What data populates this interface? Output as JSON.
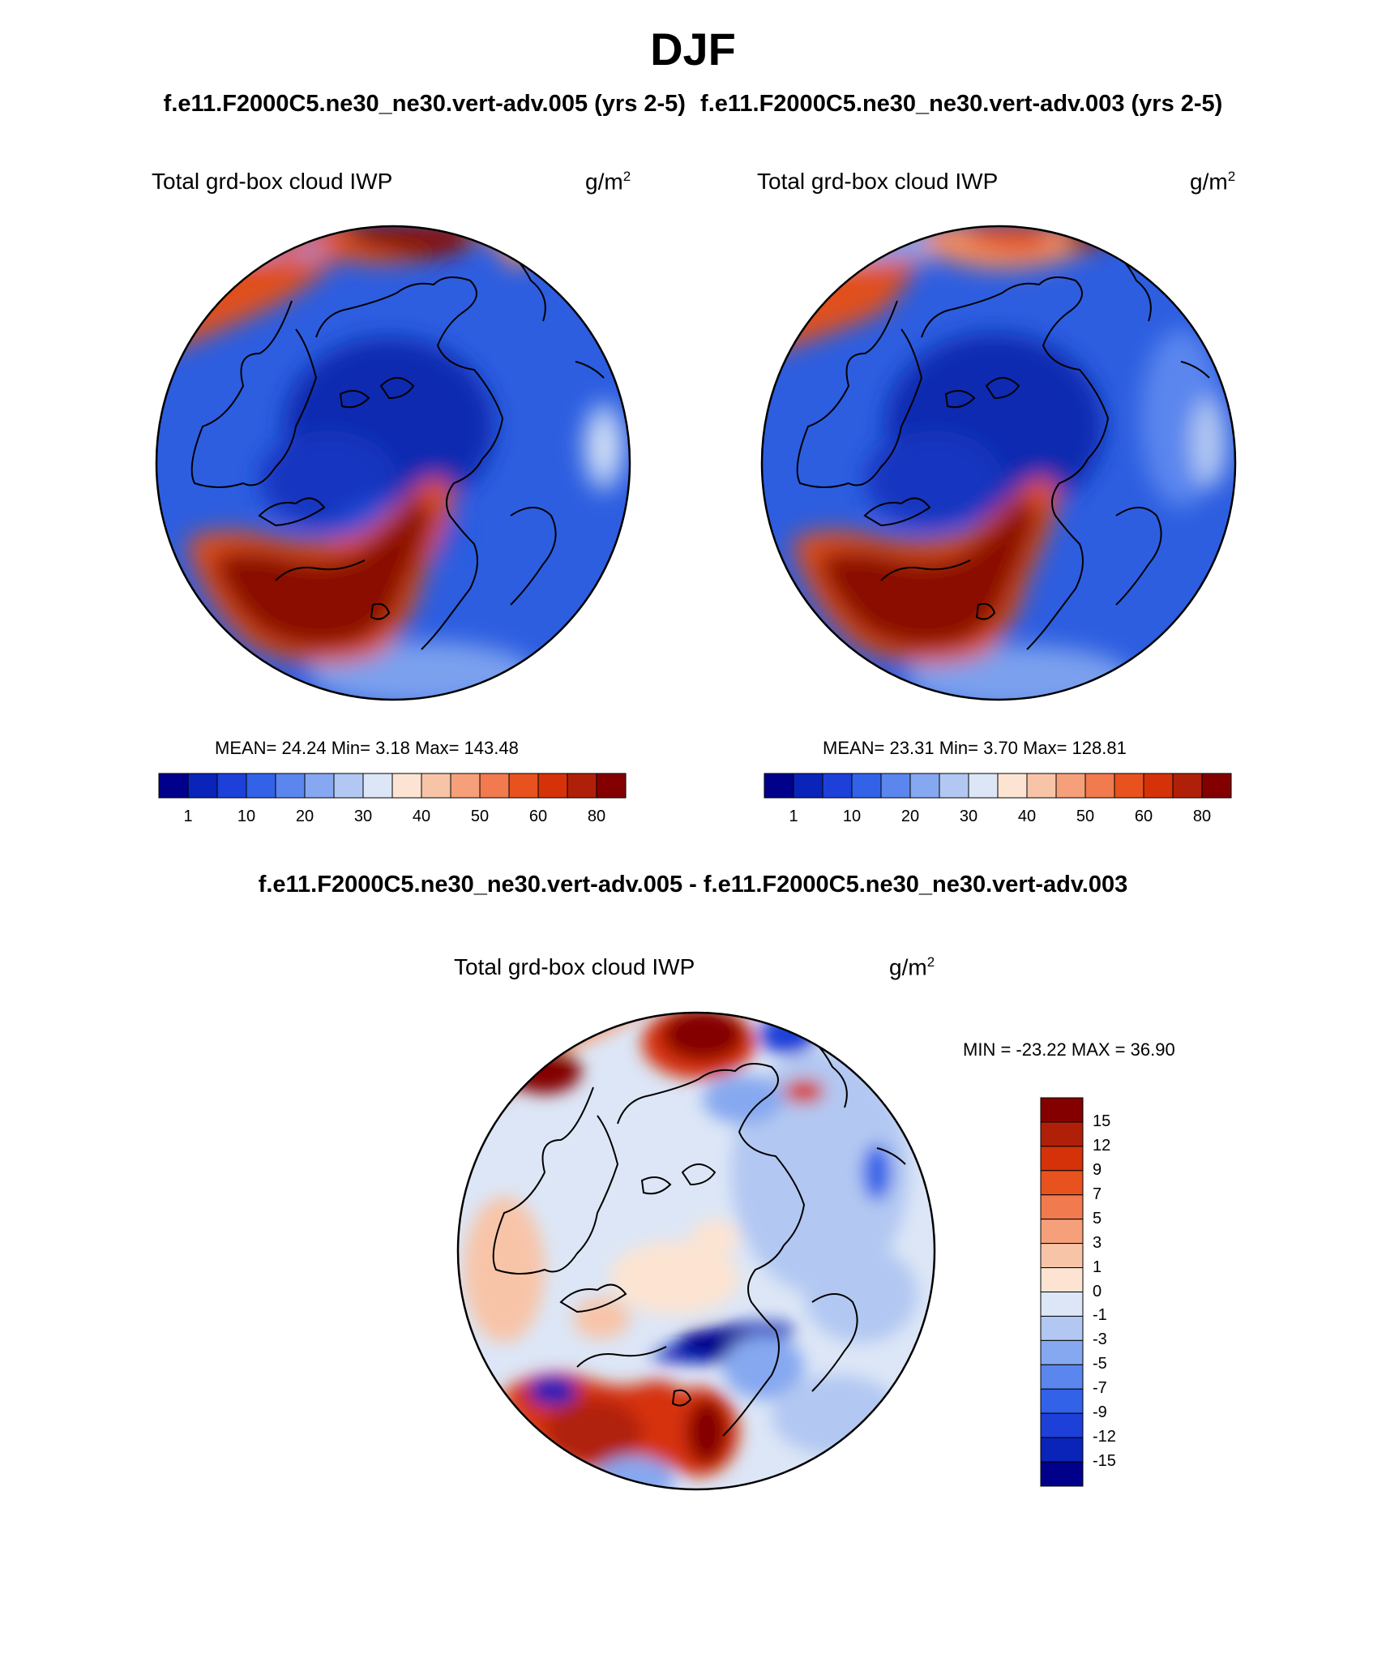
{
  "title": "DJF",
  "cases": [
    "f.e11.F2000C5.ne30_ne30.vert-adv.005 (yrs 2-5)",
    "f.e11.F2000C5.ne30_ne30.vert-adv.003 (yrs 2-5)"
  ],
  "difference_title": "f.e11.F2000C5.ne30_ne30.vert-adv.005 - f.e11.F2000C5.ne30_ne30.vert-adv.003",
  "panels": [
    {
      "variable": "Total grd-box cloud IWP",
      "units_base": "g/m",
      "units_exp": "2",
      "stats_text": "MEAN=  24.24  Min=   3.18  Max= 143.48",
      "mean": 24.24,
      "min": 3.18,
      "max": 143.48
    },
    {
      "variable": "Total grd-box cloud IWP",
      "units_base": "g/m",
      "units_exp": "2",
      "stats_text": "MEAN=  23.31  Min=   3.70  Max= 128.81",
      "mean": 23.31,
      "min": 3.7,
      "max": 128.81
    }
  ],
  "diff_panel": {
    "variable": "Total grd-box cloud IWP",
    "units_base": "g/m",
    "units_exp": "2",
    "stats_text": "MIN = -23.22 MAX =  36.90",
    "min": -23.22,
    "max": 36.9
  },
  "colorbar_main": {
    "colors": [
      "#00008b",
      "#0a23b8",
      "#1c40d8",
      "#3262e8",
      "#5a86ee",
      "#86a8f0",
      "#b2c8f2",
      "#dce6f6",
      "#fde4d2",
      "#f8c4a8",
      "#f5a07a",
      "#f17a4e",
      "#e8521e",
      "#d5320a",
      "#b02008",
      "#840000"
    ],
    "labels": [
      "1",
      "10",
      "20",
      "30",
      "40",
      "50",
      "60",
      "80"
    ]
  },
  "colorbar_diff": {
    "colors": [
      "#840000",
      "#b02008",
      "#d5320a",
      "#e8521e",
      "#f17a4e",
      "#f5a07a",
      "#f8c4a8",
      "#fde4d2",
      "#dce6f6",
      "#b2c8f2",
      "#86a8f0",
      "#5a86ee",
      "#3262e8",
      "#1c40d8",
      "#0a23b8",
      "#00008b"
    ],
    "labels": [
      "15",
      "12",
      "9",
      "7",
      "5",
      "3",
      "1",
      "0",
      "-1",
      "-3",
      "-5",
      "-7",
      "-9",
      "-12",
      "-15"
    ]
  }
}
